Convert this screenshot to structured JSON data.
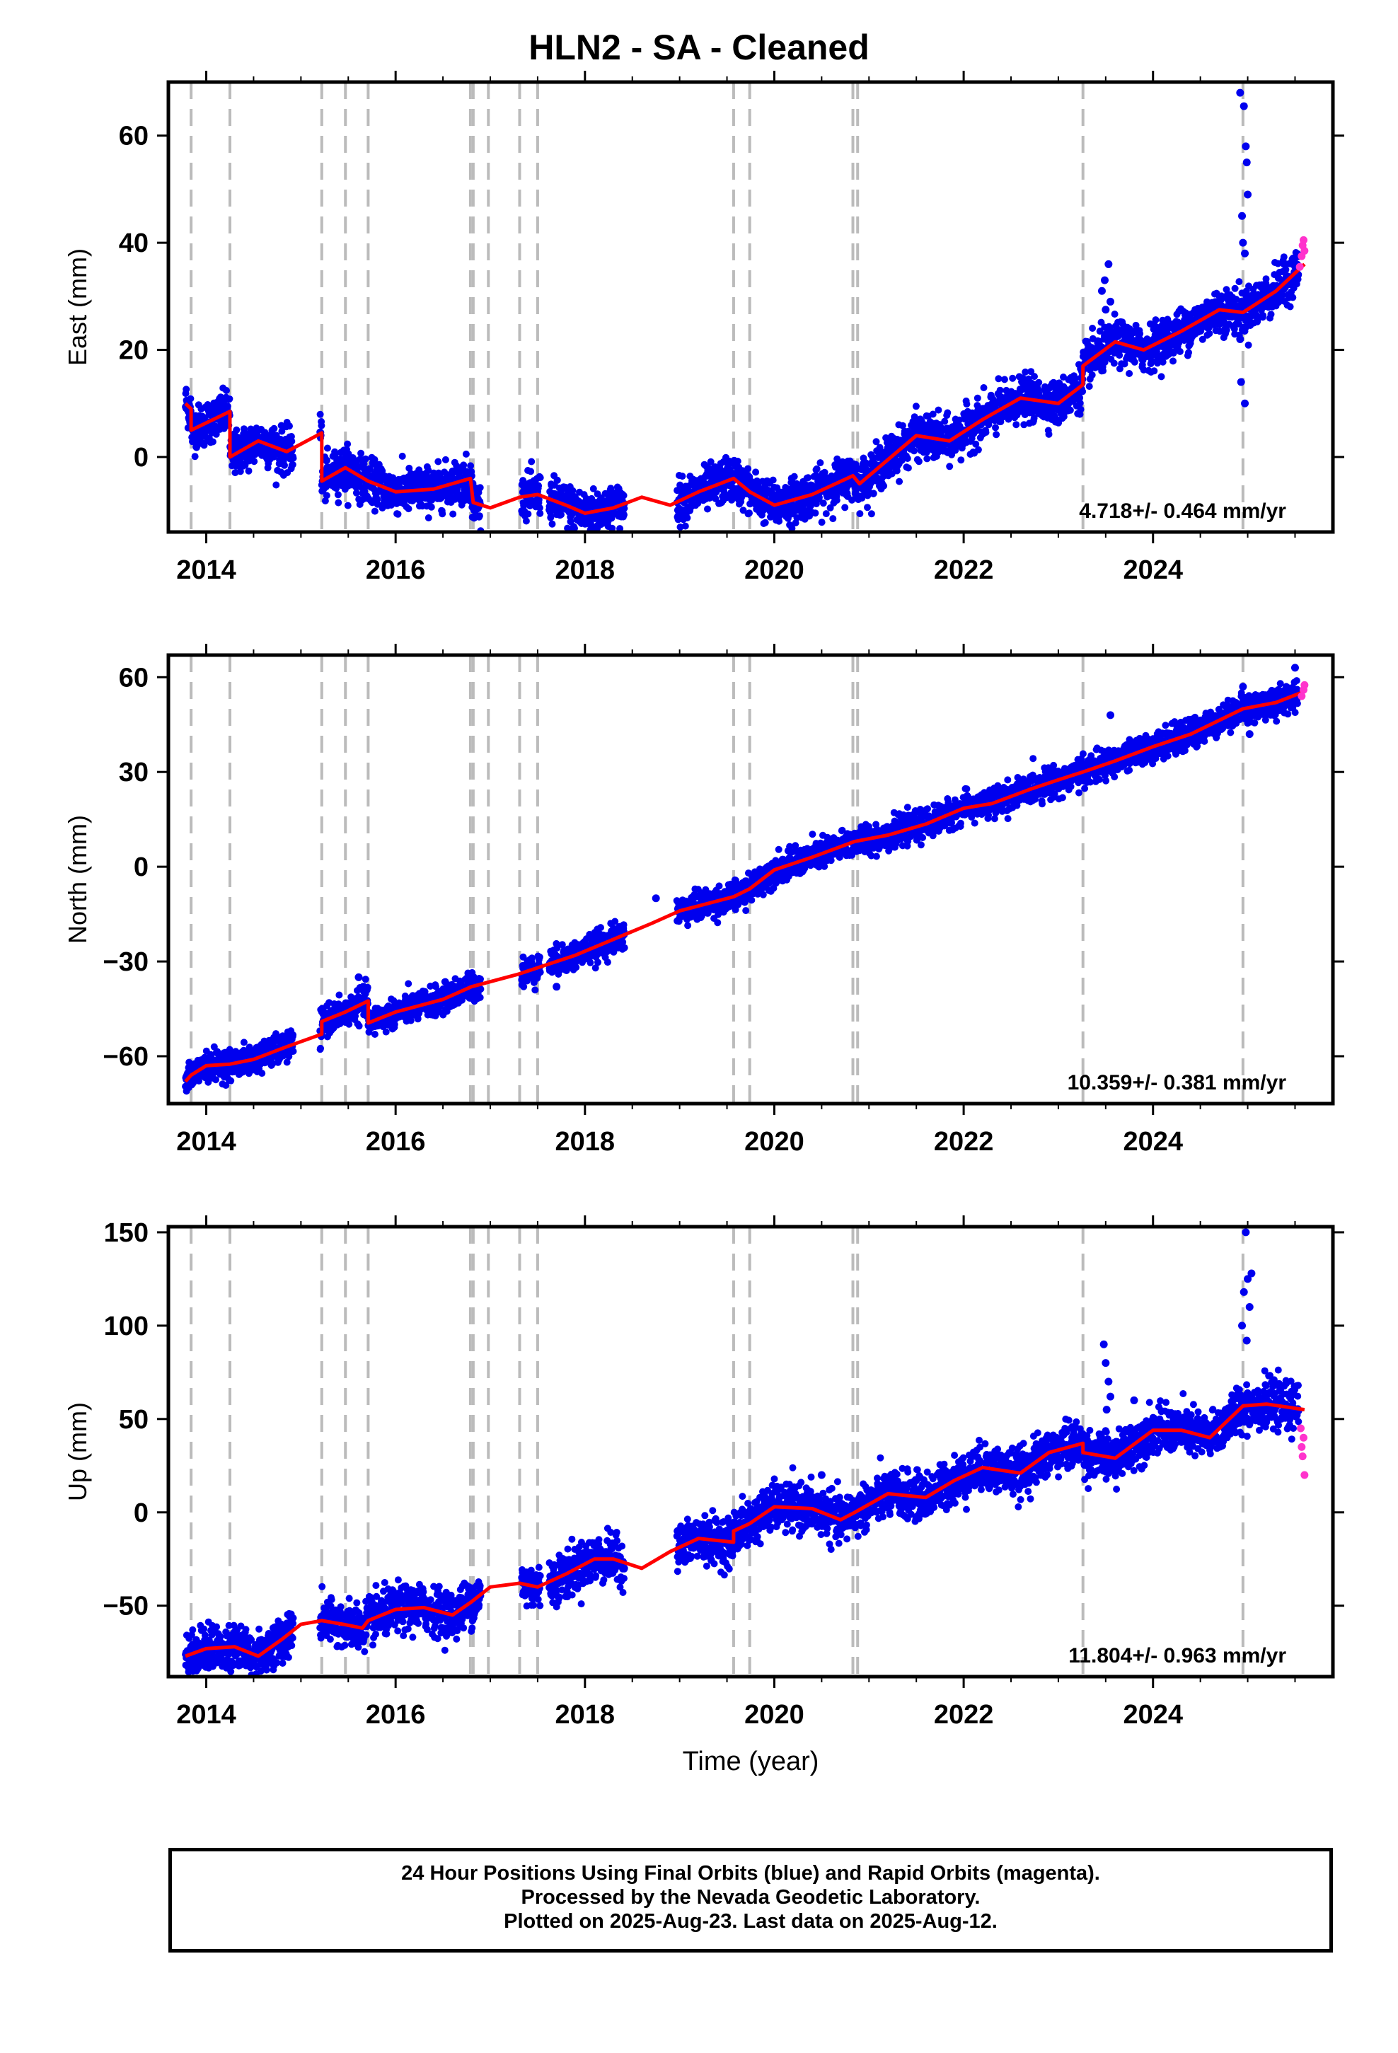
{
  "title": "HLN2  - SA - Cleaned",
  "footer": {
    "line1": "24 Hour Positions Using Final Orbits (blue) and Rapid Orbits (magenta).",
    "line2": "Processed by the Nevada Geodetic Laboratory.",
    "line3": "Plotted on 2025-Aug-23. Last data on 2025-Aug-12."
  },
  "colors": {
    "final_orbits": "#0000ee",
    "rapid_orbits": "#ff33cc",
    "model": "#ff0000",
    "steps": "#bbbbbb"
  },
  "chart_data": [
    {
      "type": "scatter",
      "xlabel": "",
      "ylabel": "East (mm)",
      "xlim": [
        2013.6,
        2025.9
      ],
      "ylim": [
        -14,
        70
      ],
      "xticks": [
        "2014",
        "2016",
        "2018",
        "2020",
        "2022",
        "2024"
      ],
      "yticks": [
        "0",
        "20",
        "40",
        "60"
      ],
      "rate_label": "4.718+/- 0.464 mm/yr",
      "grid": false,
      "steps": [
        2013.84,
        2014.25,
        2015.22,
        2015.47,
        2015.71,
        2016.79,
        2016.82,
        2016.98,
        2017.31,
        2017.5,
        2019.57,
        2019.74,
        2020.83,
        2020.88,
        2023.26,
        2024.95
      ],
      "model": [
        [
          2013.78,
          10.0
        ],
        [
          2013.84,
          9.0
        ],
        [
          2013.84,
          5.0
        ],
        [
          2014.25,
          8.5
        ],
        [
          2014.25,
          0.0
        ],
        [
          2014.55,
          3.0
        ],
        [
          2014.85,
          1.0
        ],
        [
          2015.22,
          4.5
        ],
        [
          2015.22,
          -4.5
        ],
        [
          2015.47,
          -2.0
        ],
        [
          2015.71,
          -4.5
        ],
        [
          2016.0,
          -6.5
        ],
        [
          2016.4,
          -6.0
        ],
        [
          2016.79,
          -4.0
        ],
        [
          2016.82,
          -8.5
        ],
        [
          2017.0,
          -9.5
        ],
        [
          2017.31,
          -7.5
        ],
        [
          2017.5,
          -7.0
        ],
        [
          2017.8,
          -9.0
        ],
        [
          2018.0,
          -10.5
        ],
        [
          2018.3,
          -9.5
        ],
        [
          2018.6,
          -7.5
        ],
        [
          2018.9,
          -9.0
        ],
        [
          2019.2,
          -6.5
        ],
        [
          2019.57,
          -4.0
        ],
        [
          2019.74,
          -6.5
        ],
        [
          2020.0,
          -9.0
        ],
        [
          2020.4,
          -7.0
        ],
        [
          2020.83,
          -3.5
        ],
        [
          2020.9,
          -5.0
        ],
        [
          2021.2,
          -0.5
        ],
        [
          2021.5,
          4.0
        ],
        [
          2021.85,
          3.0
        ],
        [
          2022.2,
          7.0
        ],
        [
          2022.6,
          11.0
        ],
        [
          2023.0,
          10.0
        ],
        [
          2023.26,
          13.5
        ],
        [
          2023.26,
          17.0
        ],
        [
          2023.6,
          21.5
        ],
        [
          2023.9,
          20.0
        ],
        [
          2024.3,
          23.5
        ],
        [
          2024.7,
          27.5
        ],
        [
          2024.95,
          27.0
        ],
        [
          2025.3,
          31.0
        ],
        [
          2025.6,
          36.0
        ]
      ],
      "outliers": [
        [
          2024.92,
          68.0
        ],
        [
          2024.96,
          65.5
        ],
        [
          2024.98,
          58.0
        ],
        [
          2024.99,
          55.0
        ],
        [
          2025.0,
          49.0
        ],
        [
          2024.94,
          45.0
        ],
        [
          2024.95,
          40.0
        ],
        [
          2024.97,
          38.0
        ],
        [
          2024.93,
          14.0
        ],
        [
          2024.97,
          10.0
        ],
        [
          2024.92,
          22.0
        ],
        [
          2023.53,
          36.0
        ],
        [
          2023.49,
          33.0
        ],
        [
          2023.46,
          31.0
        ],
        [
          2023.55,
          29.0
        ],
        [
          2023.5,
          27.5
        ]
      ],
      "rapid": [
        [
          2025.55,
          35.5
        ],
        [
          2025.57,
          37.5
        ],
        [
          2025.58,
          39.5
        ],
        [
          2025.59,
          40.5
        ],
        [
          2025.6,
          38.5
        ]
      ],
      "scatter": 2.0
    },
    {
      "type": "scatter",
      "xlabel": "",
      "ylabel": "North (mm)",
      "xlim": [
        2013.6,
        2025.9
      ],
      "ylim": [
        -75,
        67
      ],
      "xticks": [
        "2014",
        "2016",
        "2018",
        "2020",
        "2022",
        "2024"
      ],
      "yticks": [
        "−60",
        "−30",
        "0",
        "30",
        "60"
      ],
      "rate_label": "10.359+/- 0.381 mm/yr",
      "grid": false,
      "steps": [
        2013.84,
        2014.25,
        2015.22,
        2015.47,
        2015.71,
        2016.79,
        2016.82,
        2016.98,
        2017.31,
        2017.5,
        2019.57,
        2019.74,
        2020.83,
        2020.88,
        2023.26,
        2024.95
      ],
      "model": [
        [
          2013.78,
          -68.0
        ],
        [
          2013.84,
          -66.0
        ],
        [
          2014.0,
          -63.0
        ],
        [
          2014.25,
          -62.5
        ],
        [
          2014.5,
          -61.0
        ],
        [
          2014.85,
          -57.0
        ],
        [
          2015.22,
          -53.0
        ],
        [
          2015.22,
          -49.0
        ],
        [
          2015.47,
          -46.0
        ],
        [
          2015.71,
          -42.5
        ],
        [
          2015.71,
          -49.5
        ],
        [
          2016.0,
          -46.0
        ],
        [
          2016.5,
          -42.0
        ],
        [
          2016.8,
          -38.0
        ],
        [
          2017.3,
          -34.0
        ],
        [
          2017.5,
          -32.0
        ],
        [
          2017.9,
          -28.0
        ],
        [
          2018.3,
          -23.0
        ],
        [
          2018.7,
          -18.0
        ],
        [
          2019.0,
          -14.0
        ],
        [
          2019.57,
          -9.5
        ],
        [
          2019.74,
          -7.0
        ],
        [
          2020.0,
          -1.0
        ],
        [
          2020.4,
          3.0
        ],
        [
          2020.85,
          8.0
        ],
        [
          2021.2,
          10.0
        ],
        [
          2021.6,
          13.5
        ],
        [
          2022.0,
          18.5
        ],
        [
          2022.3,
          20.0
        ],
        [
          2022.7,
          24.5
        ],
        [
          2023.0,
          27.5
        ],
        [
          2023.26,
          30.0
        ],
        [
          2023.6,
          33.5
        ],
        [
          2024.0,
          38.0
        ],
        [
          2024.4,
          42.0
        ],
        [
          2024.95,
          50.0
        ],
        [
          2025.3,
          52.0
        ],
        [
          2025.6,
          55.5
        ]
      ],
      "outliers": [
        [
          2015.61,
          -35.0
        ],
        [
          2015.66,
          -38.0
        ],
        [
          2017.7,
          -38.0
        ],
        [
          2018.75,
          -10.0
        ],
        [
          2023.55,
          48.0
        ],
        [
          2024.95,
          57.0
        ],
        [
          2025.02,
          42.0
        ],
        [
          2025.5,
          63.0
        ]
      ],
      "rapid": [
        [
          2025.57,
          54.0
        ],
        [
          2025.59,
          56.0
        ],
        [
          2025.6,
          57.5
        ]
      ],
      "scatter": 2.2
    },
    {
      "type": "scatter",
      "xlabel": "Time (year)",
      "ylabel": "Up (mm)",
      "xlim": [
        2013.6,
        2025.9
      ],
      "ylim": [
        -88,
        153
      ],
      "xticks": [
        "2014",
        "2016",
        "2018",
        "2020",
        "2022",
        "2024"
      ],
      "yticks": [
        "−50",
        "0",
        "50",
        "100",
        "150"
      ],
      "rate_label": "11.804+/- 0.963 mm/yr",
      "grid": false,
      "steps": [
        2013.84,
        2014.25,
        2015.22,
        2015.47,
        2015.71,
        2016.79,
        2016.82,
        2016.98,
        2017.31,
        2017.5,
        2019.57,
        2019.74,
        2020.83,
        2020.88,
        2023.26,
        2024.95
      ],
      "model": [
        [
          2013.78,
          -77.0
        ],
        [
          2014.0,
          -73.0
        ],
        [
          2014.3,
          -72.0
        ],
        [
          2014.55,
          -77.0
        ],
        [
          2014.8,
          -68.0
        ],
        [
          2015.0,
          -60.0
        ],
        [
          2015.22,
          -58.0
        ],
        [
          2015.45,
          -60.0
        ],
        [
          2015.65,
          -62.0
        ],
        [
          2015.71,
          -58.0
        ],
        [
          2016.0,
          -52.0
        ],
        [
          2016.3,
          -51.0
        ],
        [
          2016.6,
          -55.0
        ],
        [
          2016.8,
          -48.0
        ],
        [
          2017.0,
          -40.0
        ],
        [
          2017.31,
          -38.0
        ],
        [
          2017.5,
          -40.0
        ],
        [
          2017.8,
          -33.0
        ],
        [
          2018.1,
          -25.0
        ],
        [
          2018.3,
          -25.0
        ],
        [
          2018.6,
          -30.0
        ],
        [
          2018.9,
          -21.0
        ],
        [
          2019.2,
          -14.0
        ],
        [
          2019.57,
          -16.0
        ],
        [
          2019.57,
          -10.0
        ],
        [
          2019.74,
          -6.0
        ],
        [
          2020.0,
          3.0
        ],
        [
          2020.4,
          2.0
        ],
        [
          2020.7,
          -4.0
        ],
        [
          2020.85,
          0.0
        ],
        [
          2021.2,
          10.0
        ],
        [
          2021.6,
          8.0
        ],
        [
          2021.9,
          17.0
        ],
        [
          2022.2,
          24.0
        ],
        [
          2022.6,
          21.0
        ],
        [
          2022.9,
          32.0
        ],
        [
          2023.26,
          37.0
        ],
        [
          2023.26,
          32.0
        ],
        [
          2023.6,
          29.0
        ],
        [
          2024.0,
          44.0
        ],
        [
          2024.3,
          44.0
        ],
        [
          2024.6,
          40.0
        ],
        [
          2024.95,
          57.0
        ],
        [
          2025.2,
          58.0
        ],
        [
          2025.6,
          55.0
        ]
      ],
      "outliers": [
        [
          2023.48,
          90.0
        ],
        [
          2023.5,
          80.0
        ],
        [
          2023.53,
          70.0
        ],
        [
          2023.55,
          62.0
        ],
        [
          2023.51,
          55.0
        ],
        [
          2024.98,
          150.0
        ],
        [
          2025.0,
          125.0
        ],
        [
          2024.96,
          118.0
        ],
        [
          2025.02,
          110.0
        ],
        [
          2024.94,
          100.0
        ],
        [
          2024.99,
          92.0
        ],
        [
          2025.04,
          128.0
        ],
        [
          2023.8,
          60.0
        ],
        [
          2020.5,
          20.0
        ],
        [
          2017.8,
          -45.0
        ]
      ],
      "rapid": [
        [
          2025.56,
          45.0
        ],
        [
          2025.57,
          35.0
        ],
        [
          2025.58,
          30.0
        ],
        [
          2025.59,
          40.0
        ],
        [
          2025.6,
          20.0
        ]
      ],
      "scatter": 6.0
    }
  ]
}
